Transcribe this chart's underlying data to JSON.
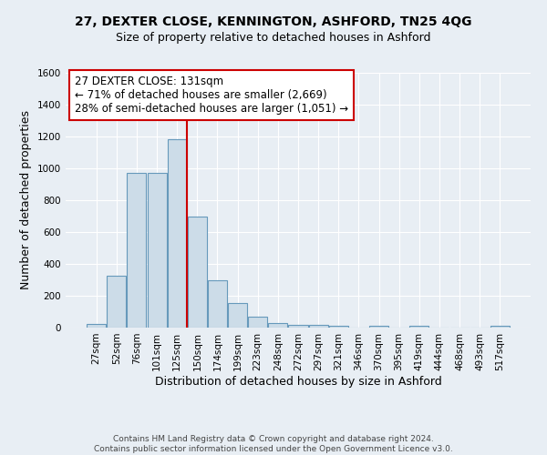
{
  "title": "27, DEXTER CLOSE, KENNINGTON, ASHFORD, TN25 4QG",
  "subtitle": "Size of property relative to detached houses in Ashford",
  "xlabel": "Distribution of detached houses by size in Ashford",
  "ylabel": "Number of detached properties",
  "categories": [
    "27sqm",
    "52sqm",
    "76sqm",
    "101sqm",
    "125sqm",
    "150sqm",
    "174sqm",
    "199sqm",
    "223sqm",
    "248sqm",
    "272sqm",
    "297sqm",
    "321sqm",
    "346sqm",
    "370sqm",
    "395sqm",
    "419sqm",
    "444sqm",
    "468sqm",
    "493sqm",
    "517sqm"
  ],
  "values": [
    25,
    325,
    970,
    970,
    1180,
    700,
    300,
    155,
    70,
    30,
    20,
    15,
    10,
    0,
    10,
    0,
    10,
    0,
    0,
    0,
    10
  ],
  "bar_color": "#ccdce8",
  "bar_edge_color": "#6699bb",
  "vline_color": "#cc0000",
  "annotation_text": "27 DEXTER CLOSE: 131sqm\n← 71% of detached houses are smaller (2,669)\n28% of semi-detached houses are larger (1,051) →",
  "annotation_box_color": "#ffffff",
  "annotation_box_edge": "#cc0000",
  "footer1": "Contains HM Land Registry data © Crown copyright and database right 2024.",
  "footer2": "Contains public sector information licensed under the Open Government Licence v3.0.",
  "bg_color": "#e8eef4",
  "grid_color": "#ffffff",
  "ylim": [
    0,
    1600
  ],
  "yticks": [
    0,
    200,
    400,
    600,
    800,
    1000,
    1200,
    1400,
    1600
  ],
  "title_fontsize": 10,
  "subtitle_fontsize": 9,
  "axis_label_fontsize": 9,
  "tick_fontsize": 7.5,
  "annotation_fontsize": 8.5,
  "footer_fontsize": 6.5
}
